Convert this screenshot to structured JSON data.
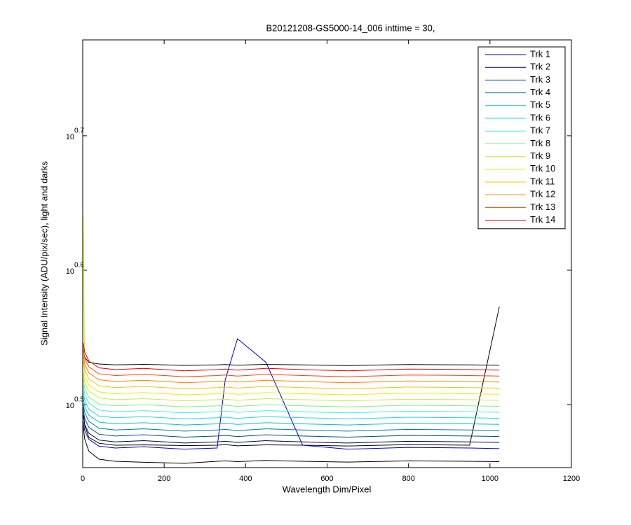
{
  "chart_data": {
    "type": "line",
    "title": "B20121208-GS5000-14_006 inttime = 30,",
    "xlabel": "Wavelength Dim/Pixel",
    "ylabel": "Signal Intensity (ADU/pix/sec), light and darks",
    "yscale": "log",
    "grid": false,
    "legend": "northeast",
    "xlim": [
      0,
      1200
    ],
    "xticks": [
      0,
      200,
      400,
      600,
      800,
      1000,
      1200
    ],
    "ylim": [
      2.839,
      5.906
    ],
    "yticks": [
      {
        "value": 3.1623,
        "label": "10",
        "exponent": "0.5"
      },
      {
        "value": 3.9811,
        "label": "10",
        "exponent": "0.6"
      },
      {
        "value": 5.0119,
        "label": "10",
        "exponent": "0.7"
      }
    ],
    "x": [
      1,
      5,
      15,
      40,
      80,
      150,
      250,
      330,
      350,
      380,
      450,
      540,
      650,
      800,
      950,
      1023
    ],
    "series": [
      {
        "name": "Trk 1",
        "color": "#0000c0",
        "values": [
          3.074,
          3.024,
          2.98,
          2.945,
          2.936,
          2.942,
          2.93,
          2.936,
          3.3,
          3.54,
          3.4,
          2.95,
          2.93,
          2.939,
          2.936,
          2.933
        ]
      },
      {
        "name": "Trk 2",
        "color": "#000050",
        "values": [
          3.106,
          3.056,
          3.011,
          2.976,
          2.967,
          2.973,
          2.961,
          2.967,
          2.97,
          2.964,
          2.973,
          2.967,
          2.961,
          2.97,
          2.967,
          2.964
        ]
      },
      {
        "name": "Trk 3",
        "color": "#004c8c",
        "values": [
          3.138,
          3.087,
          3.042,
          3.006,
          2.997,
          3.003,
          2.991,
          2.997,
          3.0,
          2.994,
          3.003,
          2.997,
          2.991,
          3.0,
          2.997,
          2.994
        ]
      },
      {
        "name": "Trk 4",
        "color": "#007a99",
        "values": [
          3.17,
          3.119,
          3.073,
          3.037,
          3.028,
          3.034,
          3.022,
          3.028,
          3.031,
          3.025,
          3.034,
          3.028,
          3.022,
          3.031,
          3.028,
          3.025
        ]
      },
      {
        "name": "Trk 5",
        "color": "#00c0d0",
        "values": [
          3.204,
          3.152,
          3.106,
          3.069,
          3.06,
          3.066,
          3.054,
          3.06,
          3.063,
          3.057,
          3.066,
          3.06,
          3.054,
          3.063,
          3.06,
          3.057
        ]
      },
      {
        "name": "Trk 6",
        "color": "#20d8e0",
        "values": [
          3.237,
          3.185,
          3.138,
          3.101,
          3.092,
          3.098,
          3.086,
          3.092,
          3.095,
          3.089,
          3.098,
          3.092,
          3.086,
          3.095,
          3.092,
          3.089
        ]
      },
      {
        "name": "Trk 7",
        "color": "#40f0e0",
        "values": [
          3.271,
          3.218,
          3.171,
          3.133,
          3.124,
          3.13,
          3.118,
          3.124,
          3.127,
          3.121,
          3.13,
          3.124,
          3.118,
          3.127,
          3.124,
          3.121
        ]
      },
      {
        "name": "Trk 8",
        "color": "#80f080",
        "values": [
          3.304,
          3.251,
          3.203,
          3.165,
          3.156,
          3.162,
          3.15,
          3.156,
          3.159,
          3.153,
          3.162,
          3.156,
          3.15,
          3.159,
          3.156,
          3.153
        ]
      },
      {
        "name": "Trk 9",
        "color": "#c0f040",
        "values": [
          3.339,
          3.285,
          3.237,
          3.199,
          3.189,
          3.195,
          3.183,
          3.189,
          3.192,
          3.186,
          3.195,
          3.189,
          3.183,
          3.192,
          3.189,
          3.186
        ]
      },
      {
        "name": "Trk 10",
        "color": "#e0f000",
        "values": [
          4.38,
          3.319,
          3.27,
          3.232,
          3.222,
          3.228,
          3.216,
          3.222,
          3.225,
          3.219,
          3.228,
          3.222,
          3.216,
          3.225,
          3.222,
          3.219
        ]
      },
      {
        "name": "Trk 11",
        "color": "#ffc000",
        "values": [
          3.409,
          3.354,
          3.305,
          3.266,
          3.256,
          3.263,
          3.249,
          3.256,
          3.259,
          3.253,
          3.263,
          3.256,
          3.249,
          3.259,
          3.256,
          3.253
        ]
      },
      {
        "name": "Trk 12",
        "color": "#ff8000",
        "values": [
          3.445,
          3.389,
          3.339,
          3.3,
          3.29,
          3.297,
          3.283,
          3.29,
          3.293,
          3.287,
          3.297,
          3.29,
          3.283,
          3.293,
          3.29,
          3.287
        ]
      },
      {
        "name": "Trk 13",
        "color": "#ff4000",
        "values": [
          3.48,
          3.424,
          3.374,
          3.334,
          3.324,
          3.331,
          3.317,
          3.324,
          3.327,
          3.321,
          3.331,
          3.324,
          3.317,
          3.327,
          3.324,
          3.321
        ]
      },
      {
        "name": "Trk 14",
        "color": "#e00000",
        "values": [
          3.516,
          3.459,
          3.408,
          3.368,
          3.358,
          3.365,
          3.351,
          3.358,
          3.361,
          3.355,
          3.365,
          3.358,
          3.351,
          3.361,
          3.358,
          3.355
        ]
      },
      {
        "color": "#000000",
        "values": [
          3.05,
          2.98,
          2.92,
          2.88,
          2.87,
          2.865,
          2.86,
          2.87,
          2.872,
          2.868,
          2.874,
          2.87,
          2.866,
          2.872,
          2.87,
          2.868
        ]
      },
      {
        "color": "#000000",
        "values": [
          3.15,
          3.05,
          2.99,
          2.96,
          2.95,
          2.952,
          2.948,
          2.95,
          2.953,
          2.947,
          2.952,
          2.95,
          2.946,
          2.953,
          2.95,
          3.74
        ]
      },
      {
        "color": "#000000",
        "values": [
          3.48,
          3.43,
          3.4,
          3.39,
          3.385,
          3.388,
          3.382,
          3.385,
          3.387,
          3.383,
          3.388,
          3.385,
          3.381,
          3.387,
          3.385,
          3.383
        ]
      }
    ]
  }
}
